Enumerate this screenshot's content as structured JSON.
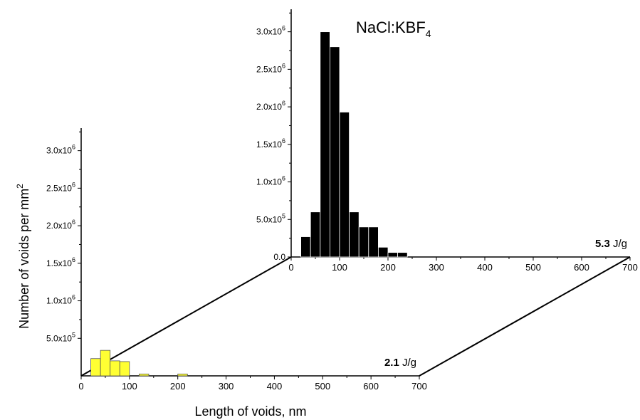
{
  "chart_data": {
    "type": "bar",
    "title": "NaCl:KBF",
    "title_subscript": "4",
    "xlabel": "Length of voids, nm",
    "ylabel": "Number of voids per mm",
    "ylabel_superscript": "2",
    "xlim": [
      0,
      700
    ],
    "ylim": [
      0,
      3300000
    ],
    "xticks": [
      "0",
      "100",
      "200",
      "300",
      "400",
      "500",
      "600",
      "700"
    ],
    "yticks_front": [
      {
        "value": 500000,
        "mantissa": "5.0x10",
        "exp": "5"
      },
      {
        "value": 1000000,
        "mantissa": "1.0x10",
        "exp": "6"
      },
      {
        "value": 1500000,
        "mantissa": "1.5x10",
        "exp": "6"
      },
      {
        "value": 2000000,
        "mantissa": "2.0x10",
        "exp": "6"
      },
      {
        "value": 2500000,
        "mantissa": "2.5x10",
        "exp": "6"
      },
      {
        "value": 3000000,
        "mantissa": "3.0x10",
        "exp": "6"
      }
    ],
    "yticks_back": [
      {
        "value": 0,
        "mantissa": "0.0",
        "exp": ""
      },
      {
        "value": 500000,
        "mantissa": "5.0x10",
        "exp": "5"
      },
      {
        "value": 1000000,
        "mantissa": "1.0x10",
        "exp": "6"
      },
      {
        "value": 1500000,
        "mantissa": "1.5x10",
        "exp": "6"
      },
      {
        "value": 2000000,
        "mantissa": "2.0x10",
        "exp": "6"
      },
      {
        "value": 2500000,
        "mantissa": "2.5x10",
        "exp": "6"
      },
      {
        "value": 3000000,
        "mantissa": "3.0x10",
        "exp": "6"
      }
    ],
    "bin_width": 20,
    "series": [
      {
        "dose_value": "2.1",
        "dose_unit": " J/g",
        "color": "#ffff33",
        "bins": [
          {
            "x": 30,
            "y": 230000
          },
          {
            "x": 50,
            "y": 340000
          },
          {
            "x": 70,
            "y": 200000
          },
          {
            "x": 90,
            "y": 190000
          },
          {
            "x": 130,
            "y": 25000
          },
          {
            "x": 210,
            "y": 25000
          }
        ]
      },
      {
        "dose_value": "5.3",
        "dose_unit": " J/g",
        "color": "#000000",
        "bins": [
          {
            "x": 30,
            "y": 270000
          },
          {
            "x": 50,
            "y": 600000
          },
          {
            "x": 70,
            "y": 3000000
          },
          {
            "x": 90,
            "y": 2800000
          },
          {
            "x": 110,
            "y": 1930000
          },
          {
            "x": 130,
            "y": 600000
          },
          {
            "x": 150,
            "y": 400000
          },
          {
            "x": 170,
            "y": 400000
          },
          {
            "x": 190,
            "y": 130000
          },
          {
            "x": 210,
            "y": 60000
          },
          {
            "x": 230,
            "y": 60000
          }
        ]
      }
    ],
    "grid": false,
    "legend": "none"
  }
}
